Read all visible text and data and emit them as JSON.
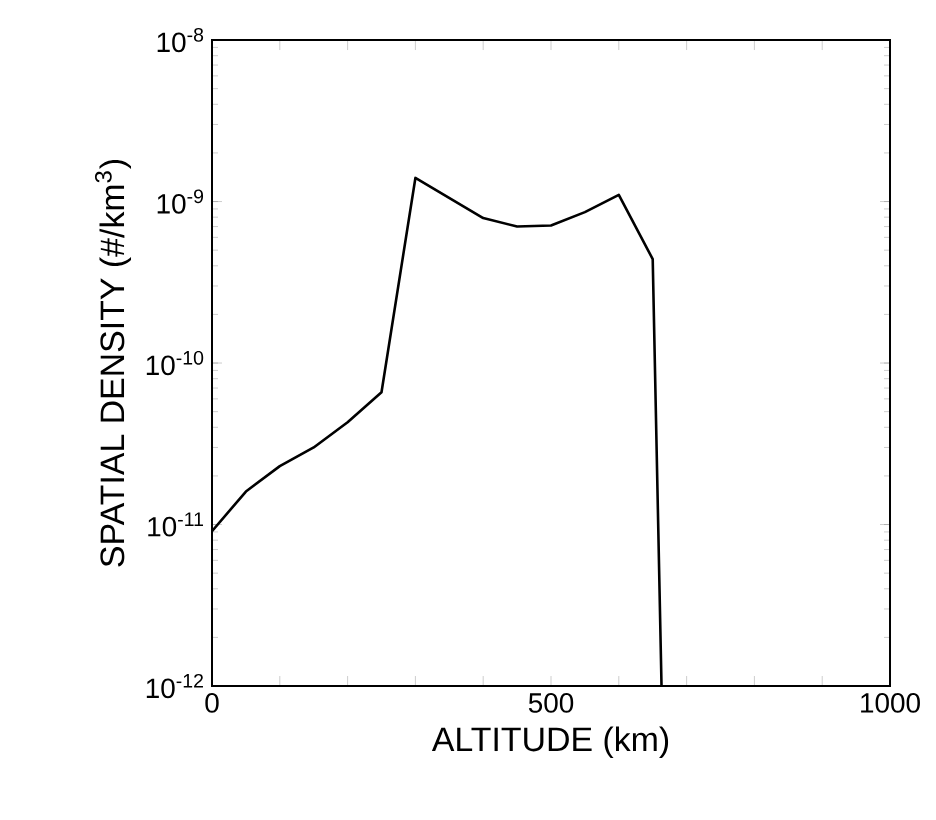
{
  "chart_data": {
    "type": "line",
    "xlabel": "ALTITUDE (km)",
    "ylabel": "SPATIAL DENSITY  (#/km$^{3}$)",
    "x": [
      0,
      50,
      100,
      150,
      200,
      250,
      300,
      400,
      450,
      500,
      550,
      600,
      650,
      663
    ],
    "series": [
      {
        "color": "#000000",
        "values": [
          9.1e-12,
          1.6e-11,
          2.3e-11,
          3e-11,
          4.3e-11,
          6.6e-11,
          1.4e-09,
          7.9e-10,
          7e-10,
          7.1e-10,
          8.6e-10,
          1.1e-09,
          4.4e-10,
          1e-12
        ]
      }
    ],
    "log": "y",
    "xlim": [
      0,
      1000
    ],
    "ylim": [
      1e-12,
      1e-08
    ],
    "xticks": [
      0,
      {
        "value": 100,
        "label": null
      },
      {
        "value": 200,
        "label": null
      },
      {
        "value": 300,
        "label": null
      },
      {
        "value": 400,
        "label": null
      },
      500,
      {
        "value": 600,
        "label": null
      },
      {
        "value": 700,
        "label": null
      },
      {
        "value": 800,
        "label": null
      },
      {
        "value": 900,
        "label": null
      },
      1000
    ],
    "yticks": [
      {
        "value": 1e-12,
        "label": "10$^{-12}$"
      },
      {
        "value": 1e-11,
        "label": "10$^{-11}$"
      },
      {
        "value": 1e-10,
        "label": "10$^{-10}$"
      },
      {
        "value": 1e-09,
        "label": "10$^{-9}$"
      },
      {
        "value": 1e-08,
        "label": "10$^{-8}$"
      }
    ],
    "marker": "none",
    "line_style": "solid",
    "grid": false
  }
}
